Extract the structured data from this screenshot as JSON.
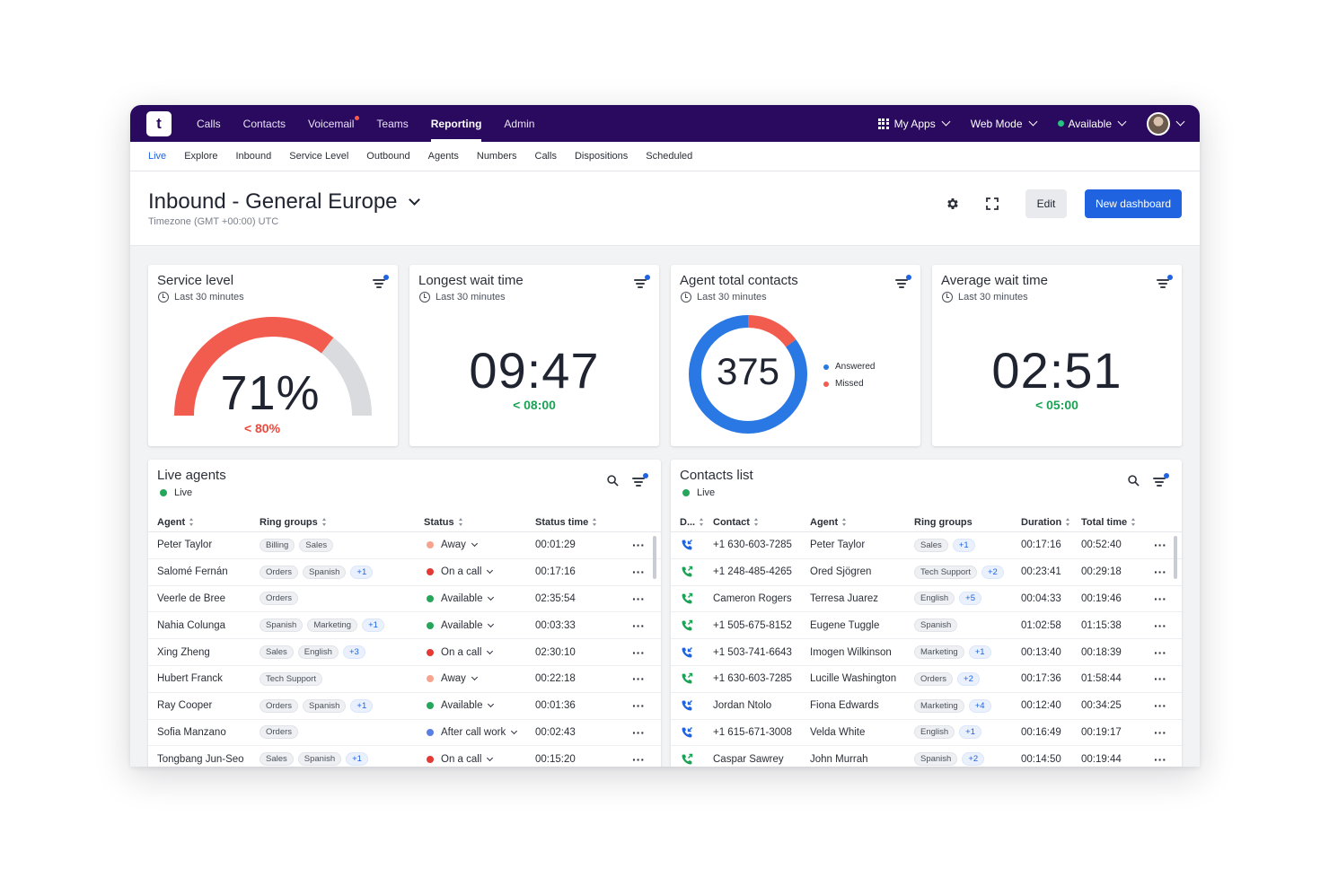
{
  "topnav": {
    "logo": "t",
    "items": [
      {
        "label": "Calls",
        "active": false,
        "dot": false
      },
      {
        "label": "Contacts",
        "active": false,
        "dot": false
      },
      {
        "label": "Voicemail",
        "active": false,
        "dot": true
      },
      {
        "label": "Teams",
        "active": false,
        "dot": false
      },
      {
        "label": "Reporting",
        "active": true,
        "dot": false
      },
      {
        "label": "Admin",
        "active": false,
        "dot": false
      }
    ],
    "my_apps": "My Apps",
    "web_mode": "Web Mode",
    "availability": "Available"
  },
  "subnav": {
    "items": [
      {
        "label": "Live",
        "active": true
      },
      {
        "label": "Explore"
      },
      {
        "label": "Inbound"
      },
      {
        "label": "Service Level"
      },
      {
        "label": "Outbound"
      },
      {
        "label": "Agents"
      },
      {
        "label": "Numbers"
      },
      {
        "label": "Calls"
      },
      {
        "label": "Dispositions"
      },
      {
        "label": "Scheduled"
      }
    ]
  },
  "header": {
    "title": "Inbound - General Europe",
    "timezone": "Timezone (GMT +00:00) UTC",
    "edit_label": "Edit",
    "new_dashboard_label": "New dashboard"
  },
  "kpis": {
    "service_level": {
      "title": "Service level",
      "period": "Last 30 minutes",
      "value": "71%",
      "value_fraction": 0.71,
      "target": "< 80%",
      "target_color": "#f0473c"
    },
    "longest_wait": {
      "title": "Longest wait time",
      "period": "Last 30 minutes",
      "value": "09:47",
      "target": "< 08:00",
      "target_color": "#1aa355"
    },
    "agent_contacts": {
      "title": "Agent total contacts",
      "period": "Last 30 minutes",
      "value": "375",
      "legend": [
        "Answered",
        "Missed"
      ],
      "answered_fraction": 0.85
    },
    "average_wait": {
      "title": "Average wait time",
      "period": "Last 30 minutes",
      "value": "02:51",
      "target": "< 05:00",
      "target_color": "#1aa355"
    }
  },
  "colors": {
    "accent": "#1f63e0",
    "nav_bg": "#2a0a5e",
    "gauge_red": "#f25c4f",
    "gauge_grey": "#d9dbdf",
    "donut_blue": "#2a78e4",
    "donut_red": "#f25c4f",
    "status_away": "#f7a48f",
    "status_on_call": "#e53935",
    "status_available": "#26a65b",
    "status_acw": "#5b7ee5"
  },
  "live_agents": {
    "title": "Live agents",
    "live_label": "Live",
    "columns": [
      "Agent",
      "Ring groups",
      "Status",
      "Status time"
    ],
    "rows": [
      {
        "agent": "Peter Taylor",
        "groups": [
          "Billing",
          "Sales"
        ],
        "more": "",
        "status": "Away",
        "status_key": "away",
        "time": "00:01:29"
      },
      {
        "agent": "Salomé Fernán",
        "groups": [
          "Orders",
          "Spanish"
        ],
        "more": "+1",
        "status": "On a call",
        "status_key": "on_call",
        "time": "00:17:16"
      },
      {
        "agent": "Veerle de Bree",
        "groups": [
          "Orders"
        ],
        "more": "",
        "status": "Available",
        "status_key": "available",
        "time": "02:35:54"
      },
      {
        "agent": "Nahia Colunga",
        "groups": [
          "Spanish",
          "Marketing"
        ],
        "more": "+1",
        "status": "Available",
        "status_key": "available",
        "time": "00:03:33"
      },
      {
        "agent": "Xing Zheng",
        "groups": [
          "Sales",
          "English"
        ],
        "more": "+3",
        "status": "On a call",
        "status_key": "on_call",
        "time": "02:30:10"
      },
      {
        "agent": "Hubert Franck",
        "groups": [
          "Tech Support"
        ],
        "more": "",
        "status": "Away",
        "status_key": "away",
        "time": "00:22:18"
      },
      {
        "agent": "Ray Cooper",
        "groups": [
          "Orders",
          "Spanish"
        ],
        "more": "+1",
        "status": "Available",
        "status_key": "available",
        "time": "00:01:36"
      },
      {
        "agent": "Sofia Manzano",
        "groups": [
          "Orders"
        ],
        "more": "",
        "status": "After call work",
        "status_key": "acw",
        "time": "00:02:43"
      },
      {
        "agent": "Tongbang Jun-Seo",
        "groups": [
          "Sales",
          "Spanish"
        ],
        "more": "+1",
        "status": "On a call",
        "status_key": "on_call",
        "time": "00:15:20"
      }
    ]
  },
  "contacts_list": {
    "title": "Contacts list",
    "live_label": "Live",
    "columns": [
      "D...",
      "Contact",
      "Agent",
      "Ring groups",
      "Duration",
      "Total time"
    ],
    "rows": [
      {
        "dir": "in",
        "contact": "+1 630-603-7285",
        "agent": "Peter Taylor",
        "groups": [
          "Sales"
        ],
        "more": "+1",
        "duration": "00:17:16",
        "total": "00:52:40"
      },
      {
        "dir": "out",
        "contact": "+1 248-485-4265",
        "agent": "Ored Sjögren",
        "groups": [
          "Tech Support"
        ],
        "more": "+2",
        "duration": "00:23:41",
        "total": "00:29:18"
      },
      {
        "dir": "out",
        "contact": "Cameron Rogers",
        "agent": "Terresa Juarez",
        "groups": [
          "English"
        ],
        "more": "+5",
        "duration": "00:04:33",
        "total": "00:19:46"
      },
      {
        "dir": "out",
        "contact": "+1 505-675-8152",
        "agent": "Eugene Tuggle",
        "groups": [
          "Spanish"
        ],
        "more": "",
        "duration": "01:02:58",
        "total": "01:15:38"
      },
      {
        "dir": "in",
        "contact": "+1 503-741-6643",
        "agent": "Imogen Wilkinson",
        "groups": [
          "Marketing"
        ],
        "more": "+1",
        "duration": "00:13:40",
        "total": "00:18:39"
      },
      {
        "dir": "out",
        "contact": "+1 630-603-7285",
        "agent": "Lucille Washington",
        "groups": [
          "Orders"
        ],
        "more": "+2",
        "duration": "00:17:36",
        "total": "01:58:44"
      },
      {
        "dir": "in",
        "contact": "Jordan Ntolo",
        "agent": "Fiona Edwards",
        "groups": [
          "Marketing"
        ],
        "more": "+4",
        "duration": "00:12:40",
        "total": "00:34:25"
      },
      {
        "dir": "in",
        "contact": "+1 615-671-3008",
        "agent": "Velda White",
        "groups": [
          "English"
        ],
        "more": "+1",
        "duration": "00:16:49",
        "total": "00:19:17"
      },
      {
        "dir": "out",
        "contact": "Caspar Sawrey",
        "agent": "John Murrah",
        "groups": [
          "Spanish"
        ],
        "more": "+2",
        "duration": "00:14:50",
        "total": "00:19:44"
      }
    ]
  }
}
